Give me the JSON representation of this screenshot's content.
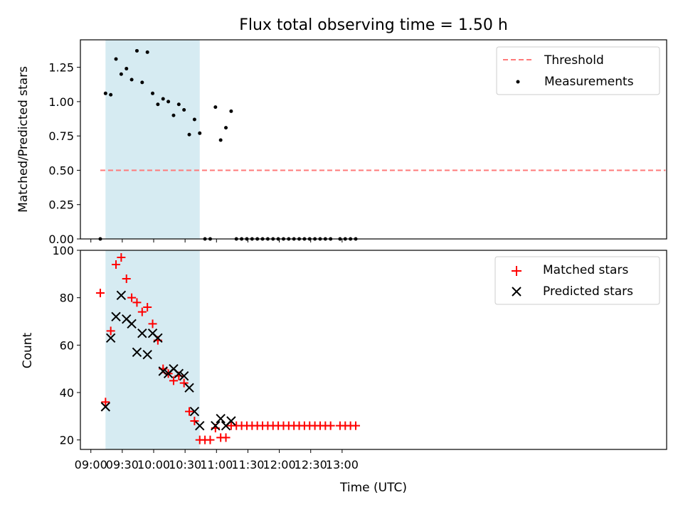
{
  "chart_data": [
    {
      "type": "scatter",
      "title": "Flux total observing time = 1.50 h",
      "ylabel": "Matched/Predicted stars",
      "xlabel": "",
      "xlim_minutes": [
        530,
        1090
      ],
      "ylim": [
        0,
        1.45
      ],
      "yticks": [
        "0.00",
        "0.25",
        "0.50",
        "0.75",
        "1.00",
        "1.25"
      ],
      "shaded_interval_minutes": [
        554,
        644
      ],
      "threshold": {
        "label": "Threshold",
        "value": 0.5,
        "x_range_minutes": [
          549,
          1089
        ],
        "color": "#ff7a7a"
      },
      "series": [
        {
          "name": "Measurements",
          "color": "#000000",
          "x_minutes": [
            549,
            554,
            559,
            564,
            569,
            574,
            579,
            584,
            589,
            594,
            599,
            604,
            609,
            614,
            619,
            624,
            629,
            634,
            639,
            644,
            649,
            654,
            659,
            664,
            669,
            674,
            679,
            684,
            689,
            694,
            699,
            704,
            709,
            714,
            719,
            724,
            729,
            734,
            739,
            744,
            749,
            754,
            759,
            764,
            769,
            778,
            783,
            788,
            793
          ],
          "values": [
            0,
            1.06,
            1.05,
            1.31,
            1.2,
            1.24,
            1.16,
            1.37,
            1.14,
            1.36,
            1.06,
            0.98,
            1.02,
            1.0,
            0.9,
            0.98,
            0.94,
            0.76,
            0.87,
            0.77,
            0,
            0,
            0.96,
            0.72,
            0.81,
            0.93,
            0,
            0,
            0,
            0,
            0,
            0,
            0,
            0,
            0,
            0,
            0,
            0,
            0,
            0,
            0,
            0,
            0,
            0,
            0,
            0,
            0,
            0,
            0
          ]
        }
      ]
    },
    {
      "type": "scatter",
      "title": "",
      "xlabel": "Time (UTC)",
      "ylabel": "Count",
      "xlim_minutes": [
        530,
        1090
      ],
      "ylim": [
        16,
        100
      ],
      "yticks": [
        "20",
        "40",
        "60",
        "80",
        "100"
      ],
      "xticks": [
        "09:00",
        "09:30",
        "10:00",
        "10:30",
        "11:00",
        "11:30",
        "12:00",
        "12:30",
        "13:00"
      ],
      "xtick_minutes": [
        540,
        570,
        600,
        630,
        660,
        690,
        720,
        750,
        780
      ],
      "shaded_interval_minutes": [
        554,
        644
      ],
      "series": [
        {
          "name": "Matched stars",
          "color": "#ff0000",
          "marker": "plus",
          "x_minutes": [
            549,
            554,
            559,
            564,
            569,
            574,
            579,
            584,
            589,
            594,
            599,
            604,
            609,
            614,
            619,
            624,
            629,
            634,
            639,
            644,
            649,
            654,
            659,
            664,
            669,
            674,
            679,
            684,
            689,
            694,
            699,
            704,
            709,
            714,
            719,
            724,
            729,
            734,
            739,
            744,
            749,
            754,
            759,
            764,
            769,
            778,
            783,
            788,
            793
          ],
          "values": [
            82,
            36,
            66,
            94,
            97,
            88,
            80,
            78,
            74,
            76,
            69,
            62,
            50,
            48,
            45,
            47,
            44,
            32,
            28,
            20,
            20,
            20,
            25,
            21,
            21,
            26,
            26,
            26,
            26,
            26,
            26,
            26,
            26,
            26,
            26,
            26,
            26,
            26,
            26,
            26,
            26,
            26,
            26,
            26,
            26,
            26,
            26,
            26,
            26
          ]
        },
        {
          "name": "Predicted stars",
          "color": "#000000",
          "marker": "x",
          "x_minutes": [
            554,
            559,
            564,
            569,
            574,
            579,
            584,
            589,
            594,
            599,
            604,
            609,
            614,
            619,
            624,
            629,
            634,
            639,
            644,
            659,
            664,
            669,
            674
          ],
          "values": [
            34,
            63,
            72,
            81,
            71,
            69,
            57,
            65,
            56,
            65,
            63,
            49,
            48,
            50,
            48,
            47,
            42,
            32,
            26,
            26,
            29,
            26,
            28
          ]
        }
      ]
    }
  ]
}
